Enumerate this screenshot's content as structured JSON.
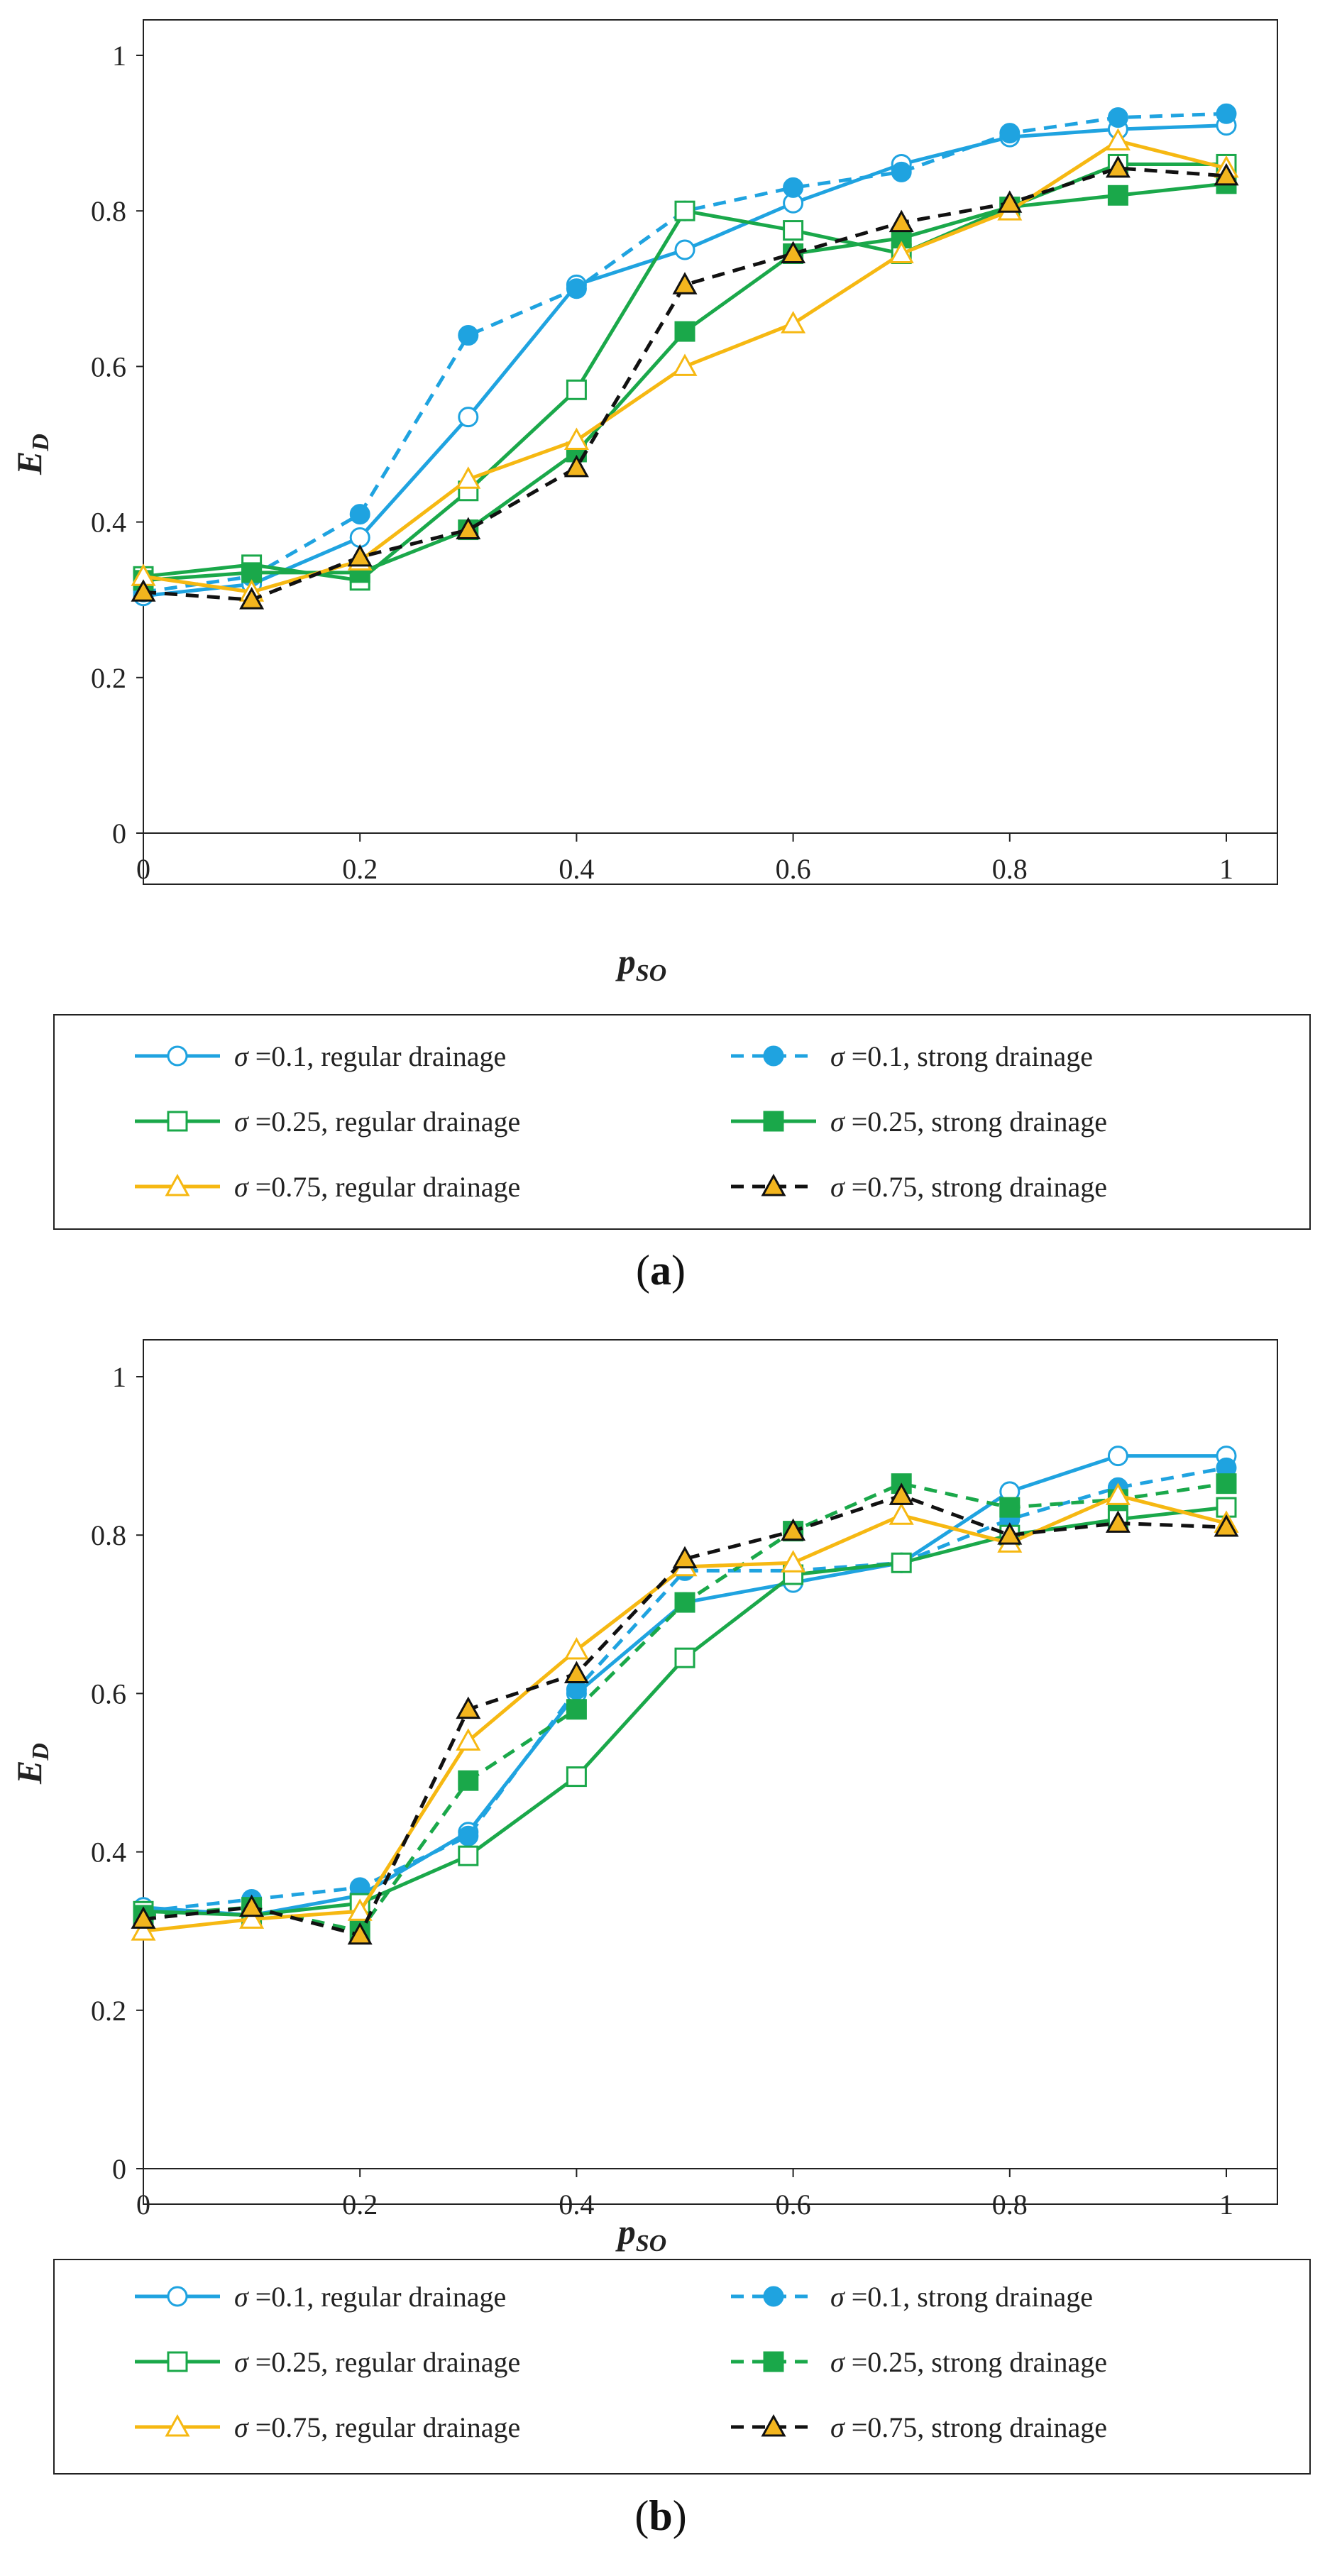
{
  "figure": {
    "panels": [
      {
        "label": "a",
        "label_text": "(a)"
      },
      {
        "label": "b",
        "label_text": "(b)"
      }
    ],
    "colors": {
      "blue": "#1fa3e0",
      "green": "#1aa84a",
      "yellow": "#f6b812",
      "black": "#111111",
      "marker_fill_yellow": "#f3b51e"
    }
  },
  "chart_data": [
    {
      "type": "line",
      "panel": "a",
      "xlabel": "p",
      "xlabel_sub": "SO",
      "ylabel": "E",
      "ylabel_sub": "D",
      "xlim": [
        0,
        1
      ],
      "ylim": [
        0,
        1
      ],
      "xticks": [
        0,
        0.2,
        0.4,
        0.6,
        0.8,
        1
      ],
      "xtick_labels": [
        "0",
        "0.2",
        "0.4",
        "0.6",
        "0.8",
        "1"
      ],
      "yticks": [
        0,
        0.2,
        0.4,
        0.6,
        0.8,
        1
      ],
      "ytick_labels": [
        "0",
        "0.2",
        "0.4",
        "0.6",
        "0.8",
        "1"
      ],
      "grid": false,
      "legend_position": "below",
      "x": [
        0,
        0.1,
        0.2,
        0.3,
        0.4,
        0.5,
        0.6,
        0.7,
        0.8,
        0.9,
        1
      ],
      "series": [
        {
          "id": "s01-reg",
          "sigma_label": "σ",
          "label": " =0.1, regular drainage",
          "color": "#1fa3e0",
          "dash": "solid",
          "marker": "circle-open",
          "values": [
            0.305,
            0.32,
            0.38,
            0.535,
            0.705,
            0.75,
            0.81,
            0.86,
            0.895,
            0.905,
            0.91
          ]
        },
        {
          "id": "s01-str",
          "sigma_label": "σ",
          "label": " =0.1, strong drainage",
          "color": "#1fa3e0",
          "dash": "dashed",
          "marker": "circle-filled",
          "values": [
            0.31,
            0.33,
            0.41,
            0.64,
            0.7,
            0.8,
            0.83,
            0.85,
            0.9,
            0.92,
            0.925
          ]
        },
        {
          "id": "s025-reg",
          "sigma_label": "σ",
          "label": " =0.25, regular drainage",
          "color": "#1aa84a",
          "dash": "solid",
          "marker": "square-open",
          "values": [
            0.33,
            0.345,
            0.325,
            0.44,
            0.57,
            0.8,
            0.775,
            0.745,
            0.805,
            0.86,
            0.86
          ]
        },
        {
          "id": "s025-str",
          "sigma_label": "σ",
          "label": " =0.25, strong drainage",
          "color": "#1aa84a",
          "dash": "solid",
          "marker": "square-filled",
          "values": [
            0.325,
            0.335,
            0.335,
            0.39,
            0.49,
            0.645,
            0.745,
            0.765,
            0.805,
            0.82,
            0.835
          ]
        },
        {
          "id": "s075-reg",
          "sigma_label": "σ",
          "label": " =0.75, regular drainage",
          "color": "#f6b812",
          "dash": "solid",
          "marker": "triangle-open",
          "values": [
            0.33,
            0.31,
            0.35,
            0.455,
            0.505,
            0.6,
            0.655,
            0.745,
            0.8,
            0.89,
            0.855
          ]
        },
        {
          "id": "s075-str",
          "sigma_label": "σ",
          "label": " =0.75, strong drainage",
          "color": "#111111",
          "dash": "dashed",
          "marker": "triangle-filled",
          "values": [
            0.31,
            0.3,
            0.355,
            0.39,
            0.47,
            0.705,
            0.745,
            0.785,
            0.81,
            0.855,
            0.845
          ]
        }
      ]
    },
    {
      "type": "line",
      "panel": "b",
      "xlabel": "p",
      "xlabel_sub": "SO",
      "ylabel": "E",
      "ylabel_sub": "D",
      "xlim": [
        0,
        1
      ],
      "ylim": [
        0,
        1
      ],
      "xticks": [
        0,
        0.2,
        0.4,
        0.6,
        0.8,
        1
      ],
      "xtick_labels": [
        "0",
        "0.2",
        "0.4",
        "0.6",
        "0.8",
        "1"
      ],
      "yticks": [
        0,
        0.2,
        0.4,
        0.6,
        0.8,
        1
      ],
      "ytick_labels": [
        "0",
        "0.2",
        "0.4",
        "0.6",
        "0.8",
        "1"
      ],
      "grid": false,
      "legend_position": "below",
      "x": [
        0,
        0.1,
        0.2,
        0.3,
        0.4,
        0.5,
        0.6,
        0.7,
        0.8,
        0.9,
        1
      ],
      "series": [
        {
          "id": "s01-reg",
          "sigma_label": "σ",
          "label": " =0.1, regular drainage",
          "color": "#1fa3e0",
          "dash": "solid",
          "marker": "circle-open",
          "values": [
            0.33,
            0.32,
            0.345,
            0.425,
            0.6,
            0.715,
            0.74,
            0.765,
            0.855,
            0.9,
            0.9
          ]
        },
        {
          "id": "s01-str",
          "sigma_label": "σ",
          "label": " =0.1, strong drainage",
          "color": "#1fa3e0",
          "dash": "dashed",
          "marker": "circle-filled",
          "values": [
            0.325,
            0.34,
            0.355,
            0.42,
            0.605,
            0.755,
            0.755,
            0.765,
            0.82,
            0.86,
            0.885
          ]
        },
        {
          "id": "s025-reg",
          "sigma_label": "σ",
          "label": " =0.25, regular drainage",
          "color": "#1aa84a",
          "dash": "solid",
          "marker": "square-open",
          "values": [
            0.325,
            0.32,
            0.335,
            0.395,
            0.495,
            0.645,
            0.75,
            0.765,
            0.8,
            0.82,
            0.835
          ]
        },
        {
          "id": "s025-str",
          "sigma_label": "σ",
          "label": " =0.25, strong drainage",
          "color": "#1aa84a",
          "dash": "dashed",
          "marker": "square-filled",
          "values": [
            0.32,
            0.33,
            0.3,
            0.49,
            0.58,
            0.715,
            0.805,
            0.865,
            0.835,
            0.845,
            0.865
          ]
        },
        {
          "id": "s075-reg",
          "sigma_label": "σ",
          "label": " =0.75, regular drainage",
          "color": "#f6b812",
          "dash": "solid",
          "marker": "triangle-open",
          "values": [
            0.3,
            0.315,
            0.325,
            0.54,
            0.655,
            0.76,
            0.765,
            0.825,
            0.79,
            0.85,
            0.815
          ]
        },
        {
          "id": "s075-str",
          "sigma_label": "σ",
          "label": " =0.75, strong drainage",
          "color": "#111111",
          "dash": "dashed",
          "marker": "triangle-filled",
          "values": [
            0.315,
            0.33,
            0.295,
            0.58,
            0.625,
            0.77,
            0.805,
            0.85,
            0.8,
            0.815,
            0.81
          ]
        }
      ]
    }
  ]
}
